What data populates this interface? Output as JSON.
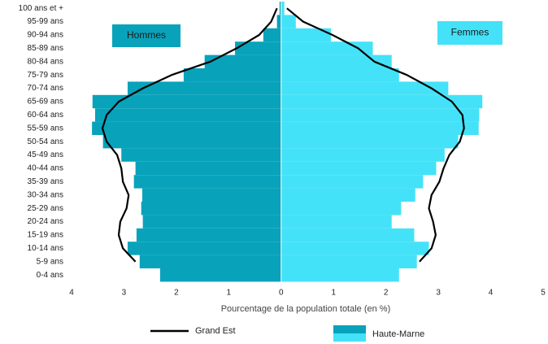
{
  "chart_data": {
    "type": "pyramid",
    "categories": [
      "100 ans et +",
      "95-99 ans",
      "90-94 ans",
      "85-89 ans",
      "80-84 ans",
      "75-79 ans",
      "70-74 ans",
      "65-69 ans",
      "60-64 ans",
      "55-59 ans",
      "50-54 ans",
      "45-49 ans",
      "40-44 ans",
      "35-39 ans",
      "30-34 ans",
      "25-29 ans",
      "20-24 ans",
      "15-19 ans",
      "10-14 ans",
      "5-9 ans",
      "0-4 ans"
    ],
    "sides": [
      {
        "name": "Hommes",
        "color": "#08a3bb",
        "values": [
          0.03,
          0.08,
          0.34,
          0.88,
          1.46,
          1.86,
          2.93,
          3.6,
          3.55,
          3.61,
          3.4,
          3.05,
          2.78,
          2.81,
          2.65,
          2.67,
          2.64,
          2.76,
          2.93,
          2.7,
          2.31
        ],
        "line_values": [
          0.08,
          0.19,
          0.42,
          0.85,
          1.35,
          2.09,
          2.64,
          3.1,
          3.33,
          3.41,
          3.33,
          3.13,
          3.05,
          3.02,
          2.91,
          2.95,
          3.07,
          3.1,
          3.02,
          2.78,
          null
        ]
      },
      {
        "name": "Femmes",
        "color": "#44e2f8",
        "values": [
          0.06,
          0.28,
          0.95,
          1.75,
          2.11,
          2.25,
          3.19,
          3.84,
          3.78,
          3.77,
          3.38,
          3.12,
          2.96,
          2.71,
          2.56,
          2.29,
          2.11,
          2.54,
          2.82,
          2.59,
          2.25
        ],
        "line_values": [
          0.11,
          0.42,
          0.98,
          1.47,
          1.78,
          2.4,
          2.87,
          3.26,
          3.46,
          3.49,
          3.41,
          3.21,
          3.1,
          3.02,
          2.87,
          2.82,
          2.9,
          2.95,
          2.87,
          2.64,
          null
        ]
      }
    ],
    "line_name": "Grand Est",
    "line_color": "#000000",
    "bar_name": "Haute-Marne",
    "xlabel": "Pourcentage de la population totale (en %)",
    "xlim": [
      -4,
      5
    ],
    "xticks": [
      {
        "value": -4,
        "label": "4"
      },
      {
        "value": -3,
        "label": "3"
      },
      {
        "value": -2,
        "label": "2"
      },
      {
        "value": -1,
        "label": "1"
      },
      0,
      1,
      2,
      3,
      4,
      5
    ]
  }
}
